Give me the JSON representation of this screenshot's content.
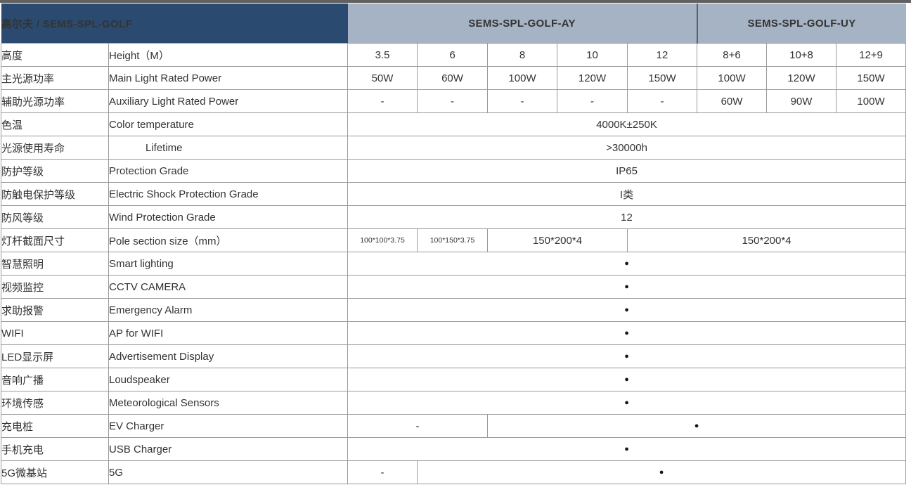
{
  "header": {
    "product_title": "高尔夫 / SEMS-SPL-GOLF",
    "group_ay": "SEMS-SPL-GOLF-AY",
    "group_uy": "SEMS-SPL-GOLF-UY"
  },
  "colors": {
    "navy_header": "#2b4a70",
    "group_header": "#a6b3c4",
    "border": "#9a9a9a",
    "top_strip": "#616161",
    "text": "#333333"
  },
  "table": {
    "rows": [
      {
        "zh": "高度",
        "en": "Height（M）",
        "cells": [
          {
            "t": "3.5"
          },
          {
            "t": "6"
          },
          {
            "t": "8"
          },
          {
            "t": "10"
          },
          {
            "t": "12"
          },
          {
            "t": "8+6"
          },
          {
            "t": "10+8"
          },
          {
            "t": "12+9"
          }
        ]
      },
      {
        "zh": "主光源功率",
        "en": "Main Light Rated Power",
        "cells": [
          {
            "t": "50W"
          },
          {
            "t": "60W"
          },
          {
            "t": "100W"
          },
          {
            "t": "120W"
          },
          {
            "t": "150W"
          },
          {
            "t": "100W"
          },
          {
            "t": "120W"
          },
          {
            "t": "150W"
          }
        ]
      },
      {
        "zh": "辅助光源功率",
        "en": "Auxiliary Light Rated Power",
        "cells": [
          {
            "t": "-"
          },
          {
            "t": "-"
          },
          {
            "t": "-"
          },
          {
            "t": "-"
          },
          {
            "t": "-"
          },
          {
            "t": "60W"
          },
          {
            "t": "90W"
          },
          {
            "t": "100W"
          }
        ]
      },
      {
        "zh": "色温",
        "en": "Color temperature",
        "cells": [
          {
            "t": "4000K±250K",
            "s": 8
          }
        ]
      },
      {
        "zh": "光源使用寿命",
        "en": "Lifetime",
        "indent": true,
        "cells": [
          {
            "t": ">30000h",
            "s": 8
          }
        ]
      },
      {
        "zh": "防护等级",
        "en": "Protection Grade",
        "cells": [
          {
            "t": "IP65",
            "s": 8
          }
        ]
      },
      {
        "zh": "防触电保护等级",
        "en": "Electric Shock Protection Grade",
        "cells": [
          {
            "t": "I类",
            "s": 8
          }
        ]
      },
      {
        "zh": "防风等级",
        "en": "Wind Protection Grade",
        "cells": [
          {
            "t": "12",
            "s": 8
          }
        ]
      },
      {
        "zh": "灯杆截面尺寸",
        "en": "Pole section size（mm）",
        "cells": [
          {
            "t": "100*100*3.75",
            "s": 1,
            "small": true
          },
          {
            "t": "100*150*3.75",
            "s": 1,
            "small": true
          },
          {
            "t": "150*200*4",
            "s": 2
          },
          {
            "t": "150*200*4",
            "s": 4
          }
        ]
      },
      {
        "zh": "智慧照明",
        "en": "Smart lighting",
        "cells": [
          {
            "t": "●",
            "s": 8
          }
        ]
      },
      {
        "zh": "视频监控",
        "en": "CCTV CAMERA",
        "cells": [
          {
            "t": "●",
            "s": 8
          }
        ]
      },
      {
        "zh": "求助报警",
        "en": "Emergency Alarm",
        "cells": [
          {
            "t": "●",
            "s": 8
          }
        ]
      },
      {
        "zh": "WIFI",
        "en": "AP for WIFI",
        "cells": [
          {
            "t": "●",
            "s": 8
          }
        ]
      },
      {
        "zh": "LED显示屏",
        "en": "Advertisement Display",
        "cells": [
          {
            "t": "●",
            "s": 8
          }
        ]
      },
      {
        "zh": "音响广播",
        "en": "Loudspeaker",
        "cells": [
          {
            "t": "●",
            "s": 8
          }
        ]
      },
      {
        "zh": "环境传感",
        "en": "Meteorological Sensors",
        "cells": [
          {
            "t": "●",
            "s": 8
          }
        ]
      },
      {
        "zh": "充电桩",
        "en": "EV Charger",
        "cells": [
          {
            "t": "-",
            "s": 2
          },
          {
            "t": "●",
            "s": 6
          }
        ]
      },
      {
        "zh": "手机充电",
        "en": "USB Charger",
        "cells": [
          {
            "t": "●",
            "s": 8
          }
        ]
      },
      {
        "zh": "5G微基站",
        "en": "5G",
        "cells": [
          {
            "t": "-",
            "s": 1
          },
          {
            "t": "●",
            "s": 7
          }
        ]
      }
    ]
  }
}
